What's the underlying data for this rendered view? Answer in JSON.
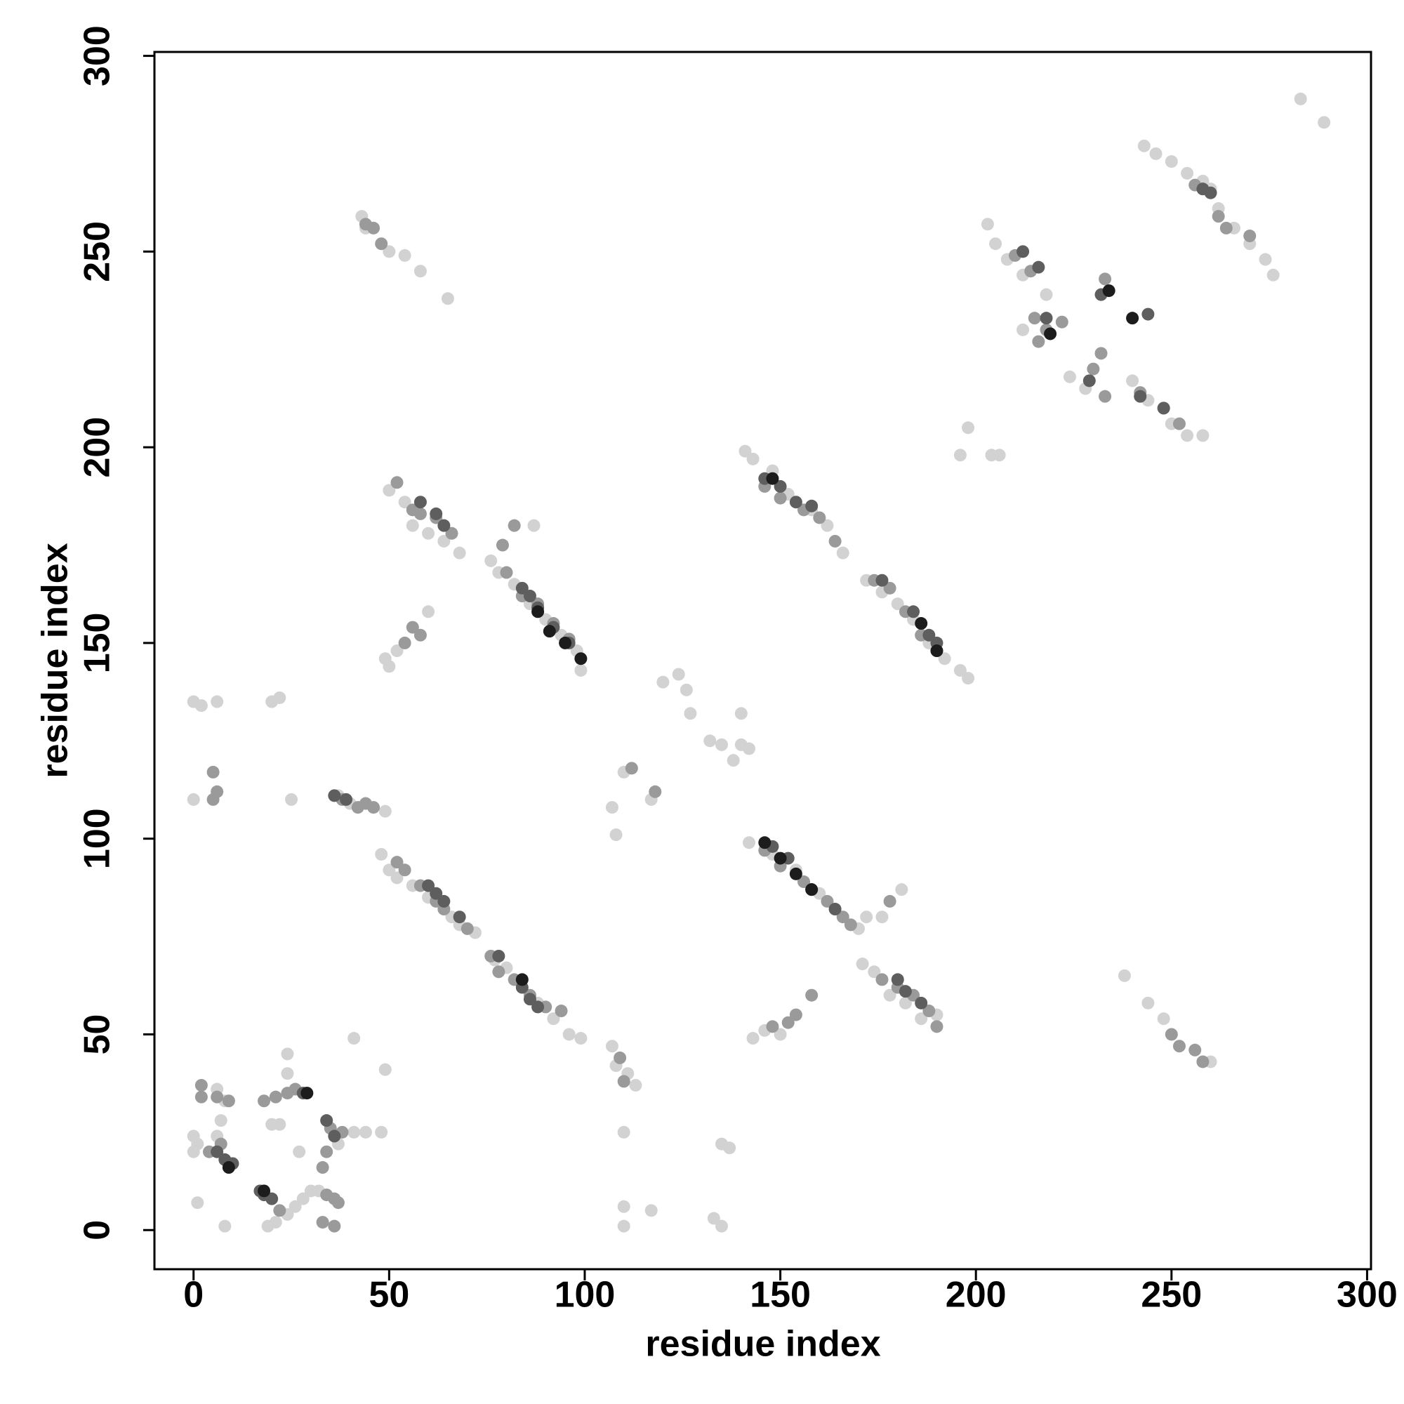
{
  "chart_data": {
    "type": "scatter",
    "xlabel": "residue index",
    "ylabel": "residue index",
    "xlim": [
      -10,
      301
    ],
    "ylim": [
      -10,
      301
    ],
    "xticks": [
      0,
      50,
      100,
      150,
      200,
      250,
      300
    ],
    "yticks": [
      0,
      50,
      100,
      150,
      200,
      250,
      300
    ],
    "grid": false,
    "series": [
      {
        "color": "#d2d2d2",
        "x": [
          0,
          0,
          1,
          6,
          7,
          8,
          1,
          8,
          6,
          24,
          26,
          28,
          30,
          32,
          21,
          19,
          24,
          24,
          27,
          20,
          22,
          41,
          44,
          48,
          41,
          49,
          37,
          37,
          40,
          49,
          0,
          2,
          6,
          20,
          22,
          0,
          25,
          48,
          50,
          52,
          56,
          60,
          66,
          68,
          72,
          77,
          80,
          88,
          92,
          96,
          99,
          50,
          54,
          56,
          60,
          64,
          68,
          76,
          78,
          82,
          86,
          90,
          94,
          98,
          99,
          87,
          49,
          50,
          52,
          60,
          43,
          44,
          50,
          54,
          58,
          65,
          107,
          108,
          111,
          113,
          110,
          110,
          110,
          117,
          107,
          108,
          110,
          117,
          120,
          124,
          126,
          127,
          132,
          135,
          140,
          142,
          138,
          140,
          135,
          137,
          133,
          135,
          142,
          148,
          154,
          160,
          164,
          170,
          172,
          176,
          181,
          143,
          146,
          150,
          171,
          174,
          178,
          182,
          186,
          190,
          141,
          143,
          148,
          152,
          158,
          162,
          166,
          172,
          176,
          180,
          184,
          188,
          192,
          196,
          198,
          203,
          205,
          208,
          212,
          218,
          212,
          224,
          228,
          240,
          244,
          250,
          254,
          258,
          243,
          246,
          250,
          254,
          258,
          260,
          262,
          266,
          270,
          274,
          276,
          238,
          244,
          248,
          260,
          283,
          289,
          198,
          204,
          206,
          196
        ],
        "values": [
          20,
          24,
          22,
          24,
          28,
          33,
          7,
          1,
          36,
          4,
          6,
          8,
          10,
          10,
          2,
          1,
          40,
          45,
          20,
          27,
          27,
          25,
          25,
          25,
          49,
          41,
          22,
          111,
          109,
          107,
          135,
          134,
          135,
          135,
          136,
          110,
          110,
          96,
          92,
          90,
          88,
          85,
          80,
          78,
          76,
          69,
          67,
          58,
          54,
          50,
          49,
          189,
          186,
          180,
          178,
          176,
          173,
          171,
          168,
          165,
          160,
          156,
          152,
          148,
          143,
          180,
          146,
          144,
          148,
          158,
          259,
          256,
          250,
          249,
          245,
          238,
          47,
          42,
          40,
          37,
          25,
          6,
          1,
          5,
          108,
          101,
          117,
          110,
          140,
          142,
          138,
          132,
          125,
          124,
          124,
          123,
          120,
          132,
          22,
          21,
          3,
          1,
          99,
          96,
          92,
          86,
          82,
          77,
          80,
          80,
          87,
          49,
          51,
          50,
          68,
          66,
          60,
          58,
          54,
          55,
          199,
          197,
          194,
          188,
          184,
          180,
          173,
          166,
          163,
          160,
          156,
          150,
          146,
          143,
          141,
          257,
          252,
          248,
          244,
          239,
          230,
          218,
          215,
          217,
          212,
          206,
          203,
          203,
          277,
          275,
          273,
          270,
          268,
          266,
          261,
          256,
          252,
          248,
          244,
          65,
          58,
          54,
          43,
          289,
          283,
          205,
          198,
          198,
          198
        ]
      },
      {
        "color": "#9a9a9a",
        "x": [
          2,
          2,
          6,
          9,
          4,
          7,
          18,
          21,
          24,
          26,
          34,
          36,
          37,
          33,
          36,
          22,
          35,
          34,
          33,
          38,
          38,
          42,
          44,
          46,
          5,
          6,
          5,
          52,
          54,
          58,
          62,
          64,
          70,
          76,
          78,
          82,
          86,
          90,
          94,
          52,
          56,
          58,
          62,
          66,
          80,
          84,
          88,
          92,
          96,
          79,
          82,
          54,
          56,
          58,
          44,
          46,
          48,
          109,
          110,
          112,
          118,
          146,
          150,
          156,
          162,
          166,
          168,
          178,
          152,
          154,
          158,
          148,
          176,
          180,
          184,
          188,
          190,
          146,
          150,
          156,
          160,
          164,
          174,
          178,
          182,
          186,
          190,
          210,
          214,
          215,
          218,
          222,
          216,
          233,
          232,
          230,
          233,
          242,
          248,
          252,
          262,
          264,
          270,
          256,
          258,
          252,
          256,
          258,
          250
        ],
        "values": [
          37,
          34,
          34,
          33,
          20,
          22,
          33,
          34,
          35,
          36,
          9,
          8,
          7,
          2,
          1,
          5,
          26,
          20,
          16,
          25,
          110,
          108,
          109,
          108,
          110,
          112,
          117,
          94,
          92,
          88,
          84,
          82,
          77,
          70,
          66,
          64,
          60,
          57,
          56,
          191,
          184,
          183,
          182,
          178,
          168,
          162,
          160,
          155,
          151,
          175,
          180,
          150,
          154,
          152,
          257,
          256,
          252,
          44,
          38,
          118,
          112,
          97,
          93,
          89,
          84,
          80,
          78,
          84,
          53,
          55,
          60,
          52,
          64,
          62,
          60,
          56,
          52,
          190,
          187,
          184,
          182,
          176,
          166,
          164,
          158,
          152,
          148,
          249,
          245,
          233,
          230,
          232,
          227,
          213,
          224,
          220,
          243,
          214,
          210,
          206,
          259,
          256,
          254,
          267,
          266,
          47,
          46,
          43,
          50
        ]
      },
      {
        "color": "#5e5e5e",
        "x": [
          8,
          10,
          6,
          17,
          18,
          20,
          28,
          34,
          36,
          36,
          39,
          60,
          62,
          64,
          68,
          78,
          84,
          86,
          88,
          58,
          62,
          64,
          84,
          86,
          88,
          92,
          96,
          148,
          152,
          158,
          164,
          180,
          182,
          186,
          146,
          150,
          154,
          158,
          176,
          184,
          188,
          190,
          212,
          216,
          218,
          229,
          232,
          244,
          242,
          248,
          260,
          258
        ],
        "values": [
          18,
          17,
          20,
          10,
          9,
          8,
          35,
          28,
          24,
          111,
          110,
          88,
          86,
          84,
          80,
          70,
          62,
          59,
          57,
          186,
          183,
          180,
          164,
          162,
          159,
          154,
          150,
          98,
          95,
          87,
          82,
          64,
          61,
          58,
          192,
          190,
          186,
          185,
          166,
          158,
          152,
          150,
          250,
          246,
          233,
          217,
          239,
          234,
          213,
          210,
          265,
          266
        ]
      },
      {
        "color": "#1c1c1c",
        "x": [
          9,
          29,
          18,
          84,
          88,
          91,
          95,
          146,
          150,
          154,
          158,
          148,
          186,
          190,
          234,
          240,
          219,
          99
        ],
        "values": [
          16,
          35,
          10,
          64,
          158,
          153,
          150,
          99,
          95,
          91,
          87,
          192,
          155,
          148,
          240,
          233,
          229,
          146
        ]
      }
    ]
  }
}
